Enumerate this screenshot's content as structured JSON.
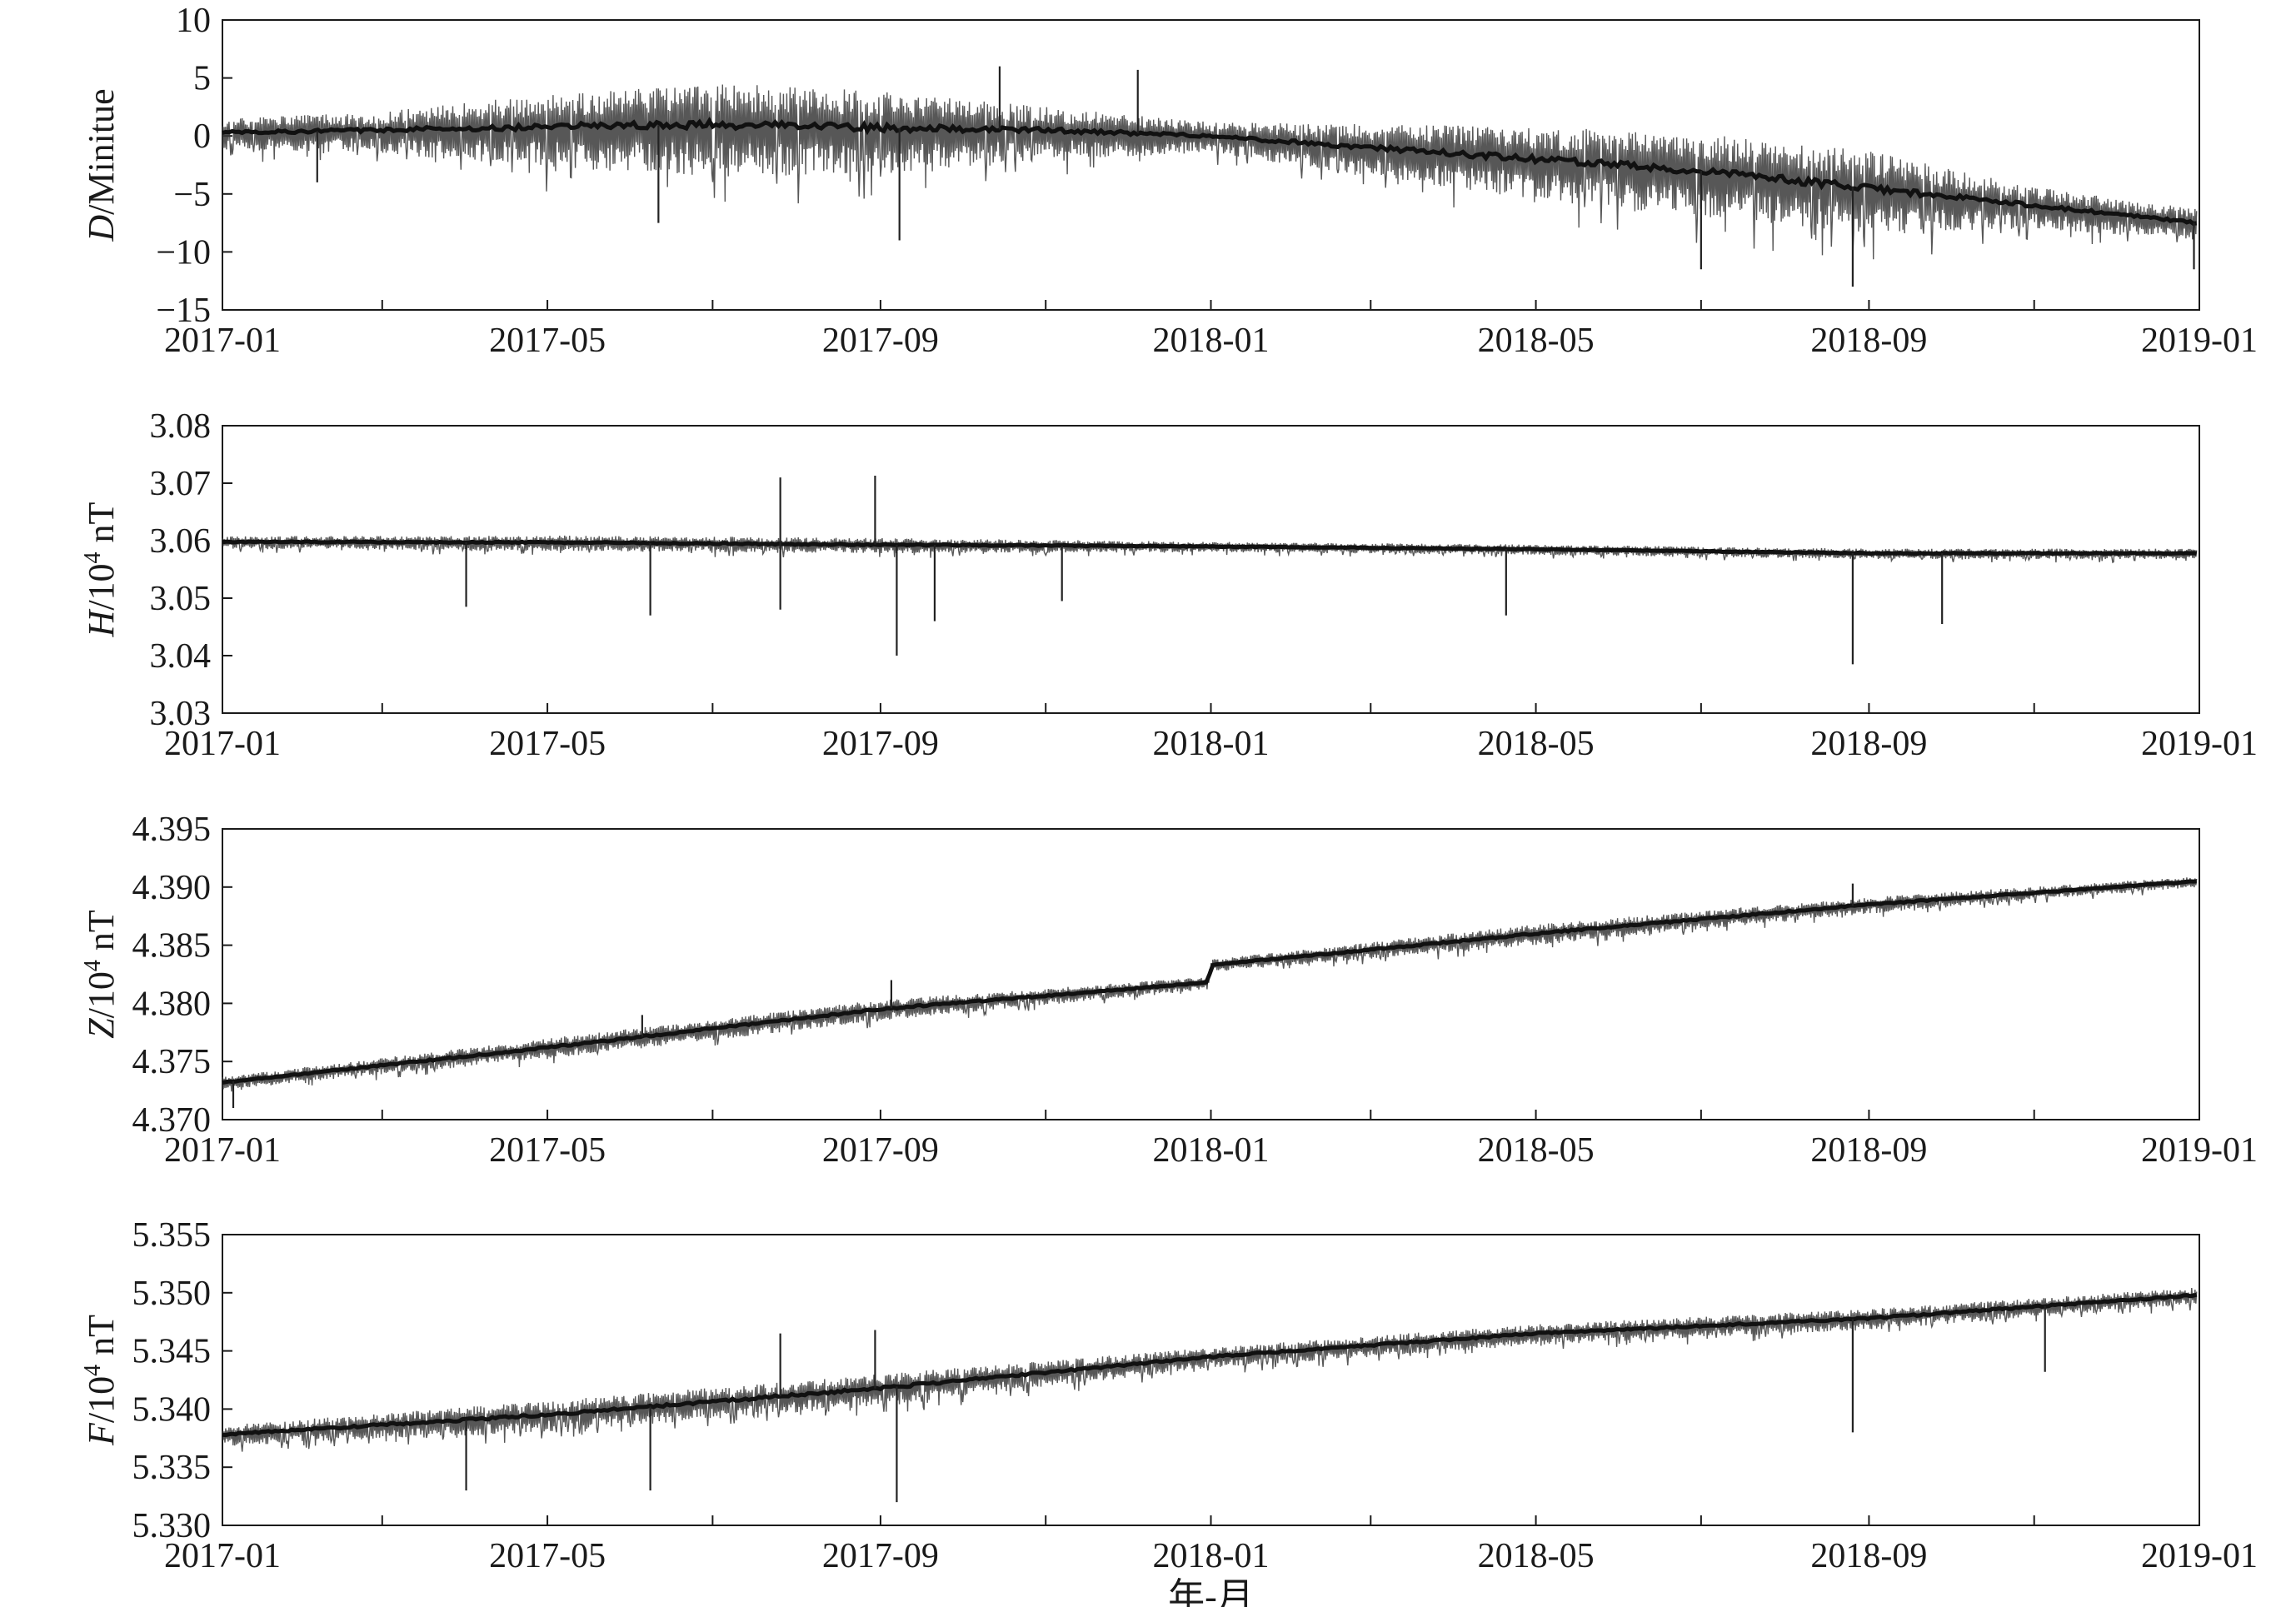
{
  "chart_data": [
    {
      "type": "line",
      "ylabel": "D/Minitue",
      "ylabel_var": "D",
      "ylabel_rest": "/Minitue",
      "x_ticks": [
        "2017-01",
        "2017-05",
        "2017-09",
        "2018-01",
        "2018-05",
        "2018-09",
        "2019-01"
      ],
      "xlim": [
        "2017-01-01",
        "2019-01-01"
      ],
      "ylim": [
        -15,
        10
      ],
      "y_ticks": [
        "10",
        "5",
        "0",
        "−5",
        "−10",
        "−15"
      ],
      "y_tick_values": [
        10,
        5,
        0,
        -5,
        -10,
        -15
      ],
      "series": [
        {
          "x": [
            "2017-01-01",
            "2017-03-01",
            "2017-05-01",
            "2017-07-01",
            "2017-09-01",
            "2017-11-01",
            "2018-01-01",
            "2018-03-01",
            "2018-05-01",
            "2018-07-01",
            "2018-09-01",
            "2018-11-01",
            "2018-12-31"
          ],
          "values": [
            0.3,
            0.5,
            0.8,
            1.0,
            0.7,
            0.5,
            0.0,
            -1.0,
            -2.0,
            -3.0,
            -4.5,
            -6.0,
            -7.5
          ],
          "spread": [
            1.5,
            2.0,
            3.5,
            4.5,
            4.0,
            2.5,
            1.5,
            2.5,
            3.5,
            4.0,
            4.0,
            2.0,
            1.5
          ],
          "spikes": [
            {
              "x": "2017-02-05",
              "y": -4.0
            },
            {
              "x": "2017-06-11",
              "y": -7.5
            },
            {
              "x": "2017-09-08",
              "y": -9.0
            },
            {
              "x": "2017-10-15",
              "y": 6.0
            },
            {
              "x": "2017-12-05",
              "y": 5.7
            },
            {
              "x": "2018-07-01",
              "y": -11.5
            },
            {
              "x": "2018-08-26",
              "y": -13.0
            },
            {
              "x": "2018-12-30",
              "y": -11.5
            }
          ]
        }
      ]
    },
    {
      "type": "line",
      "ylabel": "H/10⁴ nT",
      "ylabel_var": "H",
      "ylabel_rest": "/10",
      "ylabel_sup": "4",
      "ylabel_unit": " nT",
      "x_ticks": [
        "2017-01",
        "2017-05",
        "2017-09",
        "2018-01",
        "2018-05",
        "2018-09",
        "2019-01"
      ],
      "xlim": [
        "2017-01-01",
        "2019-01-01"
      ],
      "ylim": [
        3.03,
        3.08
      ],
      "y_ticks": [
        "3.08",
        "3.07",
        "3.06",
        "3.05",
        "3.04",
        "3.03"
      ],
      "y_tick_values": [
        3.08,
        3.07,
        3.06,
        3.05,
        3.04,
        3.03
      ],
      "series": [
        {
          "x": [
            "2017-01-01",
            "2017-05-01",
            "2017-09-01",
            "2018-01-01",
            "2018-05-01",
            "2018-09-01",
            "2018-12-31"
          ],
          "values": [
            3.0598,
            3.0597,
            3.0593,
            3.059,
            3.0585,
            3.0578,
            3.0578
          ],
          "spread": [
            0.0012,
            0.0015,
            0.0015,
            0.001,
            0.001,
            0.001,
            0.001
          ],
          "spikes": [
            {
              "x": "2017-04-01",
              "y": 3.0485
            },
            {
              "x": "2017-06-08",
              "y": 3.047
            },
            {
              "x": "2017-07-26",
              "y": 3.071
            },
            {
              "x": "2017-07-26",
              "y": 3.048
            },
            {
              "x": "2017-08-30",
              "y": 3.0713
            },
            {
              "x": "2017-09-07",
              "y": 3.04
            },
            {
              "x": "2017-09-21",
              "y": 3.046
            },
            {
              "x": "2017-11-07",
              "y": 3.0495
            },
            {
              "x": "2018-04-20",
              "y": 3.047
            },
            {
              "x": "2018-08-26",
              "y": 3.0385
            },
            {
              "x": "2018-09-28",
              "y": 3.0455
            }
          ]
        }
      ]
    },
    {
      "type": "line",
      "ylabel": "Z/10⁴ nT",
      "ylabel_var": "Z",
      "ylabel_rest": "/10",
      "ylabel_sup": "4",
      "ylabel_unit": " nT",
      "x_ticks": [
        "2017-01",
        "2017-05",
        "2017-09",
        "2018-01",
        "2018-05",
        "2018-09",
        "2019-01"
      ],
      "xlim": [
        "2017-01-01",
        "2019-01-01"
      ],
      "ylim": [
        4.37,
        4.395
      ],
      "y_ticks": [
        "4.395",
        "4.390",
        "4.385",
        "4.380",
        "4.375",
        "4.370"
      ],
      "y_tick_values": [
        4.395,
        4.39,
        4.385,
        4.38,
        4.375,
        4.37
      ],
      "series": [
        {
          "x": [
            "2017-01-01",
            "2017-05-01",
            "2017-09-01",
            "2017-12-31",
            "2018-01-01",
            "2018-05-01",
            "2018-09-01",
            "2018-12-31"
          ],
          "values": [
            4.3732,
            4.3762,
            4.3795,
            4.3818,
            4.3833,
            4.386,
            4.3885,
            4.3905
          ],
          "spread": [
            0.0006,
            0.001,
            0.001,
            0.0006,
            0.0006,
            0.001,
            0.0008,
            0.0005
          ],
          "spikes": [
            {
              "x": "2017-01-05",
              "y": 4.371
            },
            {
              "x": "2017-06-05",
              "y": 4.379
            },
            {
              "x": "2017-09-05",
              "y": 4.382
            },
            {
              "x": "2018-08-26",
              "y": 4.3903
            }
          ]
        }
      ]
    },
    {
      "type": "line",
      "ylabel": "F/10⁴ nT",
      "ylabel_var": "F",
      "ylabel_rest": "/10",
      "ylabel_sup": "4",
      "ylabel_unit": " nT",
      "xlabel": "年-月",
      "x_ticks": [
        "2017-01",
        "2017-05",
        "2017-09",
        "2018-01",
        "2018-05",
        "2018-09",
        "2019-01"
      ],
      "xlim": [
        "2017-01-01",
        "2019-01-01"
      ],
      "ylim": [
        5.33,
        5.355
      ],
      "y_ticks": [
        "5.355",
        "5.350",
        "5.345",
        "5.340",
        "5.335",
        "5.330"
      ],
      "y_tick_values": [
        5.355,
        5.35,
        5.345,
        5.34,
        5.335,
        5.33
      ],
      "series": [
        {
          "x": [
            "2017-01-01",
            "2017-05-01",
            "2017-09-01",
            "2018-01-01",
            "2018-05-01",
            "2018-09-01",
            "2018-12-31"
          ],
          "values": [
            5.3378,
            5.3395,
            5.3418,
            5.3445,
            5.3465,
            5.3478,
            5.3498
          ],
          "spread": [
            0.001,
            0.0015,
            0.0015,
            0.001,
            0.001,
            0.001,
            0.0008
          ],
          "spikes": [
            {
              "x": "2017-04-01",
              "y": 5.333
            },
            {
              "x": "2017-06-08",
              "y": 5.333
            },
            {
              "x": "2017-07-26",
              "y": 5.3465
            },
            {
              "x": "2017-09-07",
              "y": 5.332
            },
            {
              "x": "2017-08-30",
              "y": 5.3468
            },
            {
              "x": "2018-08-26",
              "y": 5.338
            },
            {
              "x": "2018-11-05",
              "y": 5.3432
            }
          ]
        }
      ]
    }
  ]
}
